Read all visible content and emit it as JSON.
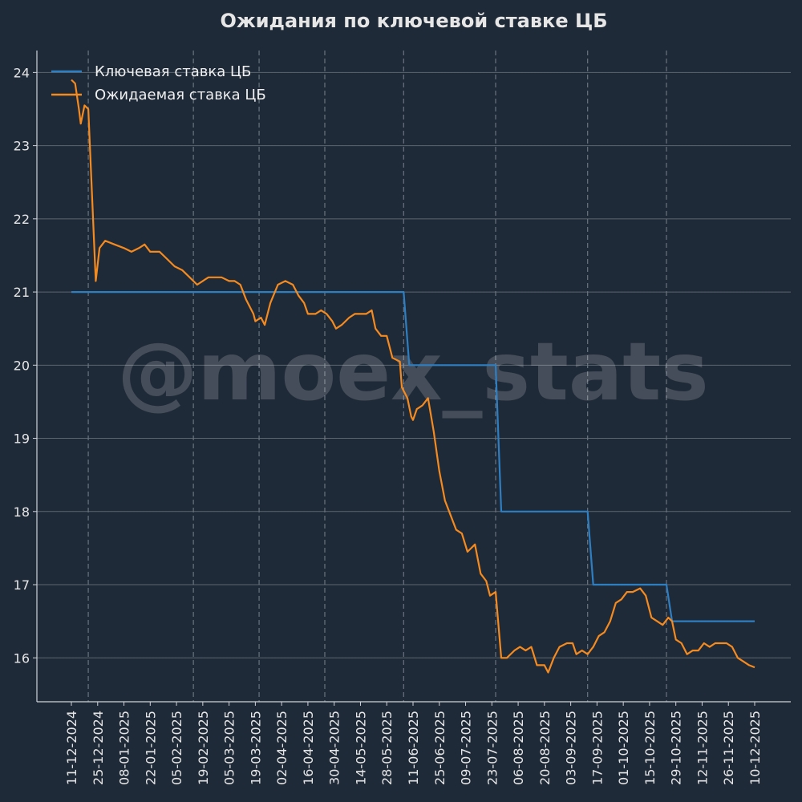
{
  "watermark": "@moex_stats",
  "colors": {
    "background": "#1f2a38",
    "grid": "#5c6670",
    "event_line": "#6a7480",
    "axis": "#cfd3d8",
    "text": "#e6e6e6",
    "key_rate": "#2e7fc2",
    "expected_rate": "#f58a1f"
  },
  "chart_data": {
    "type": "line",
    "title": "Ожидания по ключевой ставке ЦБ",
    "xlabel": "",
    "ylabel": "",
    "x_range": [
      "2024-12-11",
      "2025-12-10"
    ],
    "ylim": [
      15.4,
      24.3
    ],
    "yticks": [
      16,
      17,
      18,
      19,
      20,
      21,
      22,
      23,
      24
    ],
    "xtick_labels": [
      "11-12-2024",
      "25-12-2024",
      "08-01-2025",
      "22-01-2025",
      "05-02-2025",
      "19-02-2025",
      "05-03-2025",
      "19-03-2025",
      "02-04-2025",
      "16-04-2025",
      "30-04-2025",
      "14-05-2025",
      "28-05-2025",
      "11-06-2025",
      "25-06-2025",
      "09-07-2025",
      "23-07-2025",
      "06-08-2025",
      "20-08-2025",
      "03-09-2025",
      "17-09-2025",
      "01-10-2025",
      "15-10-2025",
      "29-10-2025",
      "12-11-2025",
      "26-11-2025",
      "10-12-2025"
    ],
    "grid": "horizontal",
    "legend_position": "top-left",
    "meeting_dates": [
      "2024-12-20",
      "2025-02-14",
      "2025-03-21",
      "2025-04-25",
      "2025-06-06",
      "2025-07-25",
      "2025-09-12",
      "2025-10-24"
    ],
    "series": [
      {
        "name": "Ключевая ставка ЦБ",
        "color": "#2e7fc2",
        "points": [
          [
            "2024-12-11",
            21.0
          ],
          [
            "2025-06-06",
            21.0
          ],
          [
            "2025-06-09",
            20.0
          ],
          [
            "2025-07-25",
            20.0
          ],
          [
            "2025-07-28",
            18.0
          ],
          [
            "2025-09-12",
            18.0
          ],
          [
            "2025-09-15",
            17.0
          ],
          [
            "2025-10-24",
            17.0
          ],
          [
            "2025-10-27",
            16.5
          ],
          [
            "2025-12-10",
            16.5
          ]
        ]
      },
      {
        "name": "Ожидаемая ставка ЦБ",
        "color": "#f58a1f",
        "points": [
          [
            "2024-12-11",
            23.9
          ],
          [
            "2024-12-13",
            23.85
          ],
          [
            "2024-12-15",
            23.5
          ],
          [
            "2024-12-16",
            23.3
          ],
          [
            "2024-12-18",
            23.55
          ],
          [
            "2024-12-20",
            23.5
          ],
          [
            "2024-12-24",
            21.15
          ],
          [
            "2024-12-26",
            21.6
          ],
          [
            "2024-12-29",
            21.7
          ],
          [
            "2025-01-03",
            21.65
          ],
          [
            "2025-01-08",
            21.6
          ],
          [
            "2025-01-12",
            21.55
          ],
          [
            "2025-01-16",
            21.6
          ],
          [
            "2025-01-19",
            21.65
          ],
          [
            "2025-01-22",
            21.55
          ],
          [
            "2025-01-27",
            21.55
          ],
          [
            "2025-01-31",
            21.45
          ],
          [
            "2025-02-04",
            21.35
          ],
          [
            "2025-02-08",
            21.3
          ],
          [
            "2025-02-12",
            21.2
          ],
          [
            "2025-02-16",
            21.1
          ],
          [
            "2025-02-19",
            21.15
          ],
          [
            "2025-02-22",
            21.2
          ],
          [
            "2025-02-26",
            21.2
          ],
          [
            "2025-03-01",
            21.2
          ],
          [
            "2025-03-05",
            21.15
          ],
          [
            "2025-03-08",
            21.15
          ],
          [
            "2025-03-11",
            21.1
          ],
          [
            "2025-03-14",
            20.9
          ],
          [
            "2025-03-18",
            20.7
          ],
          [
            "2025-03-19",
            20.6
          ],
          [
            "2025-03-22",
            20.65
          ],
          [
            "2025-03-24",
            20.55
          ],
          [
            "2025-03-27",
            20.85
          ],
          [
            "2025-03-31",
            21.1
          ],
          [
            "2025-04-04",
            21.15
          ],
          [
            "2025-04-08",
            21.1
          ],
          [
            "2025-04-11",
            20.95
          ],
          [
            "2025-04-14",
            20.85
          ],
          [
            "2025-04-16",
            20.7
          ],
          [
            "2025-04-20",
            20.7
          ],
          [
            "2025-04-23",
            20.75
          ],
          [
            "2025-04-26",
            20.7
          ],
          [
            "2025-04-29",
            20.6
          ],
          [
            "2025-05-01",
            20.5
          ],
          [
            "2025-05-04",
            20.55
          ],
          [
            "2025-05-08",
            20.65
          ],
          [
            "2025-05-11",
            20.7
          ],
          [
            "2025-05-14",
            20.7
          ],
          [
            "2025-05-17",
            20.7
          ],
          [
            "2025-05-20",
            20.75
          ],
          [
            "2025-05-22",
            20.5
          ],
          [
            "2025-05-25",
            20.4
          ],
          [
            "2025-05-28",
            20.4
          ],
          [
            "2025-05-31",
            20.1
          ],
          [
            "2025-06-04",
            20.05
          ],
          [
            "2025-06-05",
            19.7
          ],
          [
            "2025-06-08",
            19.55
          ],
          [
            "2025-06-10",
            19.3
          ],
          [
            "2025-06-11",
            19.25
          ],
          [
            "2025-06-13",
            19.4
          ],
          [
            "2025-06-16",
            19.45
          ],
          [
            "2025-06-19",
            19.55
          ],
          [
            "2025-06-22",
            19.1
          ],
          [
            "2025-06-25",
            18.55
          ],
          [
            "2025-06-28",
            18.15
          ],
          [
            "2025-07-01",
            17.95
          ],
          [
            "2025-07-04",
            17.75
          ],
          [
            "2025-07-07",
            17.7
          ],
          [
            "2025-07-10",
            17.45
          ],
          [
            "2025-07-12",
            17.5
          ],
          [
            "2025-07-14",
            17.55
          ],
          [
            "2025-07-17",
            17.15
          ],
          [
            "2025-07-20",
            17.05
          ],
          [
            "2025-07-22",
            16.85
          ],
          [
            "2025-07-25",
            16.9
          ],
          [
            "2025-07-28",
            16.0
          ],
          [
            "2025-07-31",
            16.0
          ],
          [
            "2025-08-04",
            16.1
          ],
          [
            "2025-08-07",
            16.15
          ],
          [
            "2025-08-10",
            16.1
          ],
          [
            "2025-08-13",
            16.15
          ],
          [
            "2025-08-16",
            15.9
          ],
          [
            "2025-08-20",
            15.9
          ],
          [
            "2025-08-22",
            15.8
          ],
          [
            "2025-08-25",
            16.0
          ],
          [
            "2025-08-28",
            16.15
          ],
          [
            "2025-09-01",
            16.2
          ],
          [
            "2025-09-04",
            16.2
          ],
          [
            "2025-09-06",
            16.05
          ],
          [
            "2025-09-09",
            16.1
          ],
          [
            "2025-09-12",
            16.05
          ],
          [
            "2025-09-15",
            16.15
          ],
          [
            "2025-09-18",
            16.3
          ],
          [
            "2025-09-21",
            16.35
          ],
          [
            "2025-09-24",
            16.5
          ],
          [
            "2025-09-27",
            16.75
          ],
          [
            "2025-09-30",
            16.8
          ],
          [
            "2025-10-03",
            16.9
          ],
          [
            "2025-10-06",
            16.9
          ],
          [
            "2025-10-10",
            16.95
          ],
          [
            "2025-10-13",
            16.85
          ],
          [
            "2025-10-16",
            16.55
          ],
          [
            "2025-10-19",
            16.5
          ],
          [
            "2025-10-22",
            16.45
          ],
          [
            "2025-10-25",
            16.55
          ],
          [
            "2025-10-27",
            16.5
          ],
          [
            "2025-10-29",
            16.25
          ],
          [
            "2025-11-01",
            16.2
          ],
          [
            "2025-11-04",
            16.05
          ],
          [
            "2025-11-07",
            16.1
          ],
          [
            "2025-11-10",
            16.1
          ],
          [
            "2025-11-13",
            16.2
          ],
          [
            "2025-11-16",
            16.15
          ],
          [
            "2025-11-19",
            16.2
          ],
          [
            "2025-11-22",
            16.2
          ],
          [
            "2025-11-25",
            16.2
          ],
          [
            "2025-11-28",
            16.15
          ],
          [
            "2025-12-01",
            16.0
          ],
          [
            "2025-12-04",
            15.95
          ],
          [
            "2025-12-07",
            15.9
          ],
          [
            "2025-12-10",
            15.87
          ]
        ]
      }
    ]
  }
}
